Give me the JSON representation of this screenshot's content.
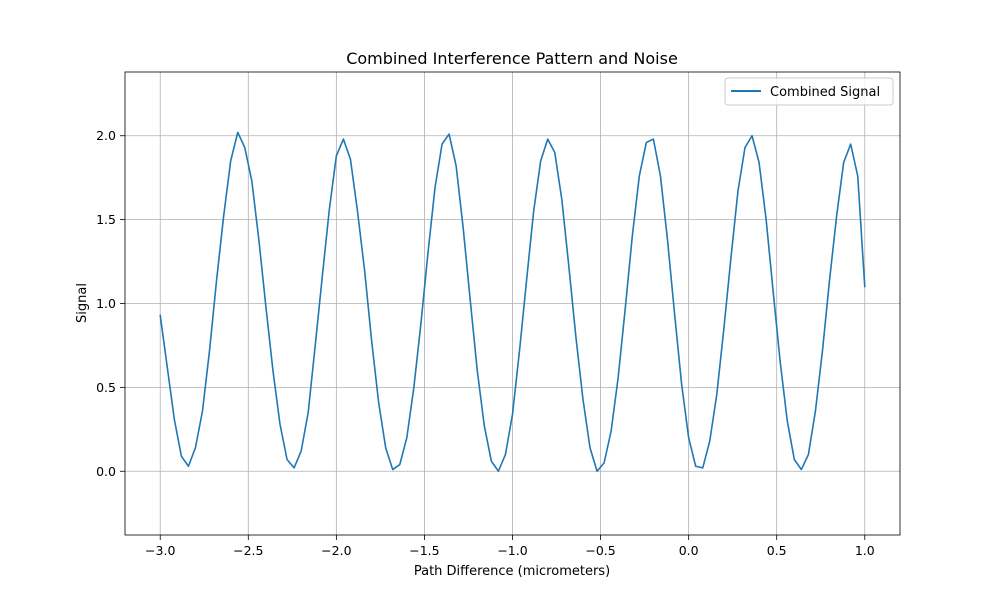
{
  "chart_data": {
    "type": "line",
    "title": "Combined Interference Pattern and Noise",
    "xlabel": "Path Difference (micrometers)",
    "ylabel": "Signal",
    "xlim": [
      -3.2,
      1.2
    ],
    "ylim": [
      -0.38,
      2.38
    ],
    "xticks": [
      -3.0,
      -2.5,
      -2.0,
      -1.5,
      -1.0,
      -0.5,
      0.0,
      0.5,
      1.0
    ],
    "xtick_labels": [
      "−3.0",
      "−2.5",
      "−2.0",
      "−1.5",
      "−1.0",
      "−0.5",
      "0.0",
      "0.5",
      "1.0"
    ],
    "yticks": [
      0.0,
      0.5,
      1.0,
      1.5,
      2.0
    ],
    "ytick_labels": [
      "0.0",
      "0.5",
      "1.0",
      "1.5",
      "2.0"
    ],
    "grid": true,
    "legend_position": "top-right",
    "series": [
      {
        "name": "Combined Signal",
        "color": "#1f77b4",
        "x": [
          -3.0,
          -2.96,
          -2.92,
          -2.88,
          -2.84,
          -2.8,
          -2.76,
          -2.72,
          -2.68,
          -2.64,
          -2.6,
          -2.56,
          -2.52,
          -2.48,
          -2.44,
          -2.4,
          -2.36,
          -2.32,
          -2.28,
          -2.24,
          -2.2,
          -2.16,
          -2.12,
          -2.08,
          -2.04,
          -2.0,
          -1.96,
          -1.92,
          -1.88,
          -1.84,
          -1.8,
          -1.76,
          -1.72,
          -1.68,
          -1.64,
          -1.6,
          -1.56,
          -1.52,
          -1.48,
          -1.44,
          -1.4,
          -1.36,
          -1.32,
          -1.28,
          -1.24,
          -1.2,
          -1.16,
          -1.12,
          -1.08,
          -1.04,
          -1.0,
          -0.96,
          -0.92,
          -0.88,
          -0.84,
          -0.8,
          -0.76,
          -0.72,
          -0.68,
          -0.64,
          -0.6,
          -0.56,
          -0.52,
          -0.48,
          -0.44,
          -0.4,
          -0.36,
          -0.32,
          -0.28,
          -0.24,
          -0.2,
          -0.16,
          -0.12,
          -0.08,
          -0.04,
          0.0,
          0.04,
          0.08,
          0.12,
          0.16,
          0.2,
          0.24,
          0.28,
          0.32,
          0.36,
          0.4,
          0.44,
          0.48,
          0.52,
          0.56,
          0.6,
          0.64,
          0.68,
          0.72,
          0.76,
          0.8,
          0.84,
          0.88,
          0.92,
          0.96,
          1.0
        ],
        "y": [
          0.93,
          0.62,
          0.31,
          0.09,
          0.03,
          0.14,
          0.36,
          0.72,
          1.14,
          1.52,
          1.85,
          2.02,
          1.93,
          1.73,
          1.38,
          0.98,
          0.6,
          0.28,
          0.07,
          0.02,
          0.12,
          0.35,
          0.75,
          1.16,
          1.56,
          1.88,
          1.98,
          1.86,
          1.55,
          1.2,
          0.78,
          0.41,
          0.14,
          0.01,
          0.04,
          0.2,
          0.5,
          0.88,
          1.3,
          1.69,
          1.95,
          2.01,
          1.82,
          1.45,
          1.02,
          0.6,
          0.27,
          0.06,
          0.0,
          0.1,
          0.34,
          0.72,
          1.14,
          1.55,
          1.85,
          1.98,
          1.9,
          1.62,
          1.22,
          0.8,
          0.43,
          0.14,
          0.0,
          0.05,
          0.24,
          0.56,
          0.97,
          1.4,
          1.76,
          1.96,
          1.98,
          1.76,
          1.38,
          0.94,
          0.52,
          0.2,
          0.03,
          0.02,
          0.18,
          0.46,
          0.85,
          1.27,
          1.67,
          1.93,
          2.0,
          1.84,
          1.5,
          1.07,
          0.65,
          0.3,
          0.07,
          0.01,
          0.1,
          0.36,
          0.72,
          1.14,
          1.52,
          1.84,
          1.95,
          1.76,
          1.1
        ]
      }
    ]
  }
}
